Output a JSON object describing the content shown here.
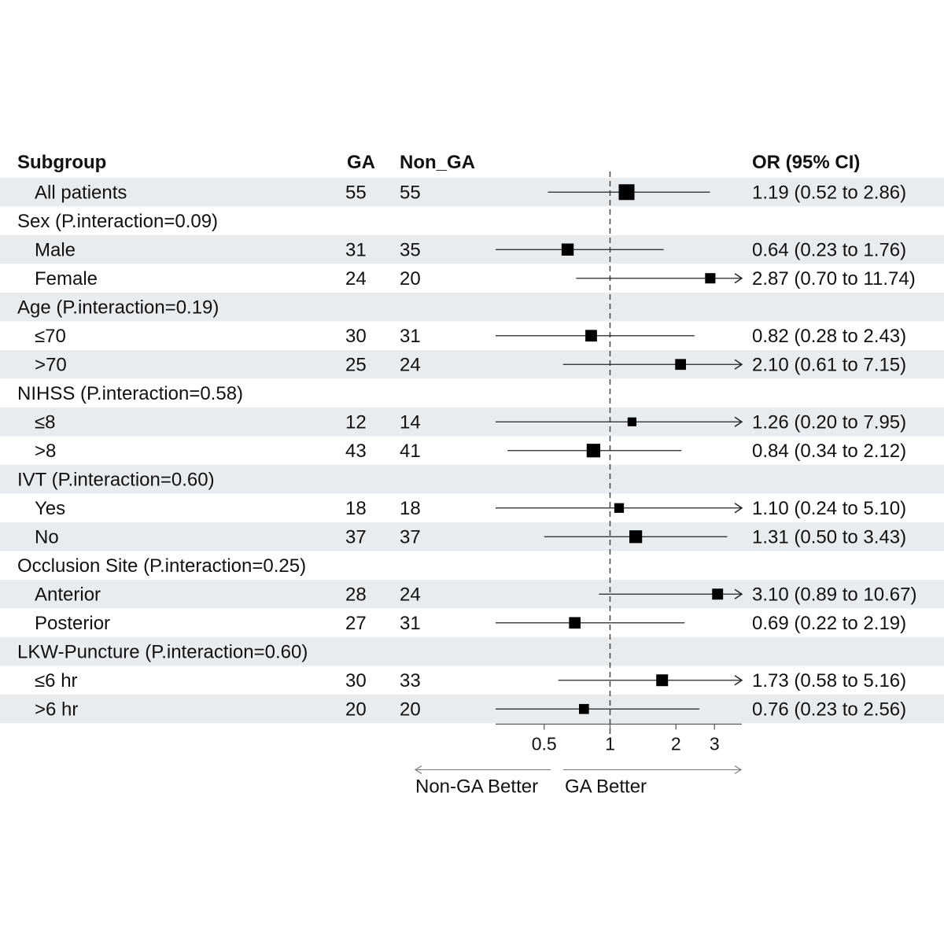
{
  "chart_data": {
    "type": "forest",
    "columns": {
      "subgroup": "Subgroup",
      "ga": "GA",
      "non_ga": "Non_GA",
      "or_ci": "OR (95% CI)"
    },
    "reference_line": 1,
    "x_ticks": [
      "0.5",
      "1",
      "2",
      "3"
    ],
    "x_tick_values": [
      0.5,
      1,
      2,
      3
    ],
    "xlim": [
      0.3,
      4.0
    ],
    "direction_labels": {
      "left": "Non-GA Better",
      "right": "GA Better"
    },
    "arrow_note": "CI arrows indicate upper bound beyond axis",
    "rows": [
      {
        "label": "All patients",
        "header": false,
        "shaded": true,
        "ga": "55",
        "non_ga": "55",
        "or": 1.19,
        "lo": 0.52,
        "hi": 2.86,
        "text": "1.19 (0.52 to 2.86)",
        "weight": 55
      },
      {
        "label": "Sex (P.interaction=0.09)",
        "header": true,
        "shaded": false
      },
      {
        "label": "Male",
        "header": false,
        "shaded": true,
        "ga": "31",
        "non_ga": "35",
        "or": 0.64,
        "lo": 0.23,
        "hi": 1.76,
        "text": "0.64 (0.23 to 1.76)",
        "weight": 33
      },
      {
        "label": "Female",
        "header": false,
        "shaded": false,
        "ga": "24",
        "non_ga": "20",
        "or": 2.87,
        "lo": 0.7,
        "hi": 11.74,
        "text": "2.87 (0.70 to 11.74)",
        "weight": 22
      },
      {
        "label": "Age  (P.interaction=0.19)",
        "header": true,
        "shaded": true
      },
      {
        "label": "≤70",
        "header": false,
        "shaded": false,
        "ga": "30",
        "non_ga": "31",
        "or": 0.82,
        "lo": 0.28,
        "hi": 2.43,
        "text": "0.82 (0.28 to 2.43)",
        "weight": 30
      },
      {
        "label": ">70",
        "header": false,
        "shaded": true,
        "ga": "25",
        "non_ga": "24",
        "or": 2.1,
        "lo": 0.61,
        "hi": 7.15,
        "text": "2.10 (0.61 to 7.15)",
        "weight": 25
      },
      {
        "label": "NIHSS  (P.interaction=0.58)",
        "header": true,
        "shaded": false
      },
      {
        "label": "≤8",
        "header": false,
        "shaded": true,
        "ga": "12",
        "non_ga": "14",
        "or": 1.26,
        "lo": 0.2,
        "hi": 7.95,
        "text": "1.26 (0.20 to 7.95)",
        "weight": 13
      },
      {
        "label": ">8",
        "header": false,
        "shaded": false,
        "ga": "43",
        "non_ga": "41",
        "or": 0.84,
        "lo": 0.34,
        "hi": 2.12,
        "text": "0.84 (0.34 to 2.12)",
        "weight": 42
      },
      {
        "label": "IVT (P.interaction=0.60)",
        "header": true,
        "shaded": true
      },
      {
        "label": "Yes",
        "header": false,
        "shaded": false,
        "ga": "18",
        "non_ga": "18",
        "or": 1.1,
        "lo": 0.24,
        "hi": 5.1,
        "text": "1.10 (0.24 to 5.10)",
        "weight": 18
      },
      {
        "label": "No",
        "header": false,
        "shaded": true,
        "ga": "37",
        "non_ga": "37",
        "or": 1.31,
        "lo": 0.5,
        "hi": 3.43,
        "text": "1.31 (0.50 to 3.43)",
        "weight": 37
      },
      {
        "label": "Occlusion Site (P.interaction=0.25)",
        "header": true,
        "shaded": false
      },
      {
        "label": "Anterior",
        "header": false,
        "shaded": true,
        "ga": "28",
        "non_ga": "24",
        "or": 3.1,
        "lo": 0.89,
        "hi": 10.67,
        "text": "3.10 (0.89 to 10.67)",
        "weight": 26
      },
      {
        "label": "Posterior",
        "header": false,
        "shaded": false,
        "ga": "27",
        "non_ga": "31",
        "or": 0.69,
        "lo": 0.22,
        "hi": 2.19,
        "text": "0.69 (0.22 to 2.19)",
        "weight": 29
      },
      {
        "label": "LKW-Puncture (P.interaction=0.60)",
        "header": true,
        "shaded": true
      },
      {
        "label": "≤6 hr",
        "header": false,
        "shaded": false,
        "ga": "30",
        "non_ga": "33",
        "or": 1.73,
        "lo": 0.58,
        "hi": 5.16,
        "text": "1.73 (0.58 to 5.16)",
        "weight": 31
      },
      {
        "label": ">6 hr",
        "header": false,
        "shaded": true,
        "ga": "20",
        "non_ga": "20",
        "or": 0.76,
        "lo": 0.23,
        "hi": 2.56,
        "text": "0.76 (0.23 to 2.56)",
        "weight": 20
      }
    ],
    "colors": {
      "band": "#e9ecef",
      "marker": "#000000",
      "line": "#222222",
      "axis": "#555555"
    }
  }
}
